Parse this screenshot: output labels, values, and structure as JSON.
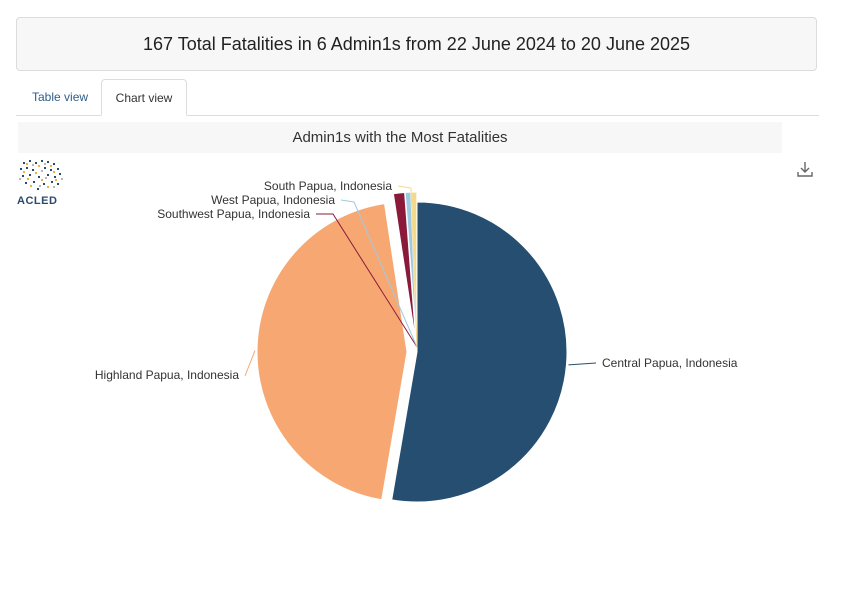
{
  "header": {
    "summary": "167 Total Fatalities in 6 Admin1s from 22 June 2024 to 20 June 2025"
  },
  "tabs": [
    {
      "label": "Table view",
      "active": false
    },
    {
      "label": "Chart view",
      "active": true
    }
  ],
  "logo": {
    "text": "ACLED"
  },
  "icons": {
    "download": "download-icon"
  },
  "colors": {
    "central": "#264e70",
    "highland": "#f7a872",
    "southwest": "#8b1a3a",
    "west": "#9ecae1",
    "south": "#f5d98b"
  },
  "chart_data": {
    "type": "pie",
    "title": "Admin1s with the Most Fatalities",
    "slices": [
      {
        "label": "Central Papua, Indonesia",
        "value": 88,
        "color": "#264e70"
      },
      {
        "label": "Highland Papua, Indonesia",
        "value": 75,
        "color": "#f7a872"
      },
      {
        "label": "Southwest Papua, Indonesia",
        "value": 2,
        "color": "#8b1a3a"
      },
      {
        "label": "West Papua, Indonesia",
        "value": 1,
        "color": "#9ecae1"
      },
      {
        "label": "South Papua, Indonesia",
        "value": 1,
        "color": "#f5d98b"
      }
    ]
  }
}
